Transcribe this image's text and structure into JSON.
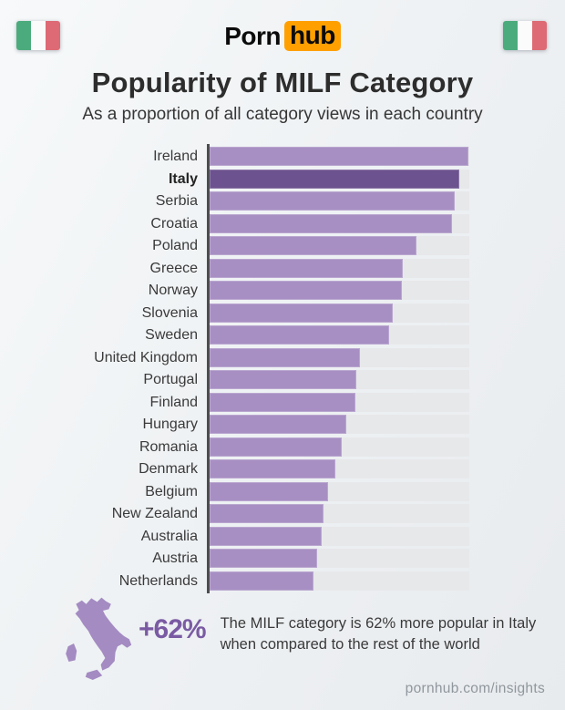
{
  "header": {
    "logo": {
      "part1": "Porn",
      "part2": "hub"
    },
    "title": "Popularity of MILF Category",
    "subtitle": "As a proportion of all category views in each country"
  },
  "icons": {
    "left_flag": "italy-flag",
    "right_flag": "italy-flag",
    "map": "italy-map"
  },
  "colors": {
    "bar": "#a78fc3",
    "bar_highlight": "#6c528e",
    "track": "#e7e8ea",
    "axis": "#4d4d4f",
    "accent_purple": "#7a5ba3",
    "map_purple": "#a48bc2",
    "logo_orange": "#ffa000",
    "flag_green": "#4cab7c",
    "flag_white": "#fbfbfb",
    "flag_red": "#dd6a74"
  },
  "chart_data": {
    "type": "bar",
    "orientation": "horizontal",
    "title": "Popularity of MILF Category",
    "subtitle": "As a proportion of all category views in each country",
    "highlight_category": "Italy",
    "categories": [
      "Ireland",
      "Italy",
      "Serbia",
      "Croatia",
      "Poland",
      "Greece",
      "Norway",
      "Slovenia",
      "Sweden",
      "United Kingdom",
      "Portugal",
      "Finland",
      "Hungary",
      "Romania",
      "Denmark",
      "Belgium",
      "New Zealand",
      "Australia",
      "Austria",
      "Netherlands"
    ],
    "values": [
      99.5,
      96,
      94.5,
      93.5,
      79.5,
      74.5,
      74,
      70.5,
      69,
      58,
      56.5,
      56,
      52.5,
      51,
      48.5,
      45.5,
      44,
      43,
      41.5,
      40
    ],
    "value_note": "relative bar length, percent of axis span (no numeric labels shown in figure)",
    "xlim": [
      0,
      100
    ],
    "grid": false,
    "legend": false
  },
  "annotation": {
    "stat": "+62%",
    "line1": "The MILF category is 62% more popular in Italy",
    "line2": "when compared to the rest of the world"
  },
  "footer": {
    "site": "pornhub.com/insights"
  }
}
